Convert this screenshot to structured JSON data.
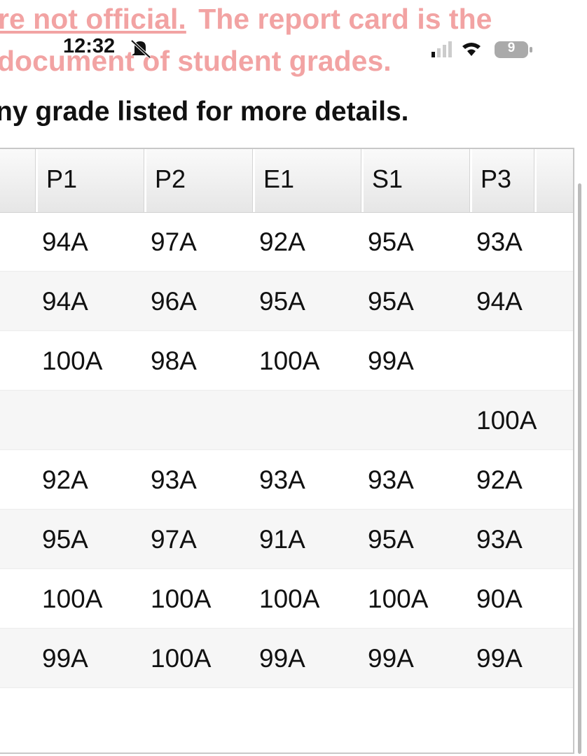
{
  "banner": {
    "link": "re not official.",
    "rest": "The report card is the",
    "line2": "document of student grades."
  },
  "status_bar": {
    "time": "12:32",
    "battery": "9"
  },
  "instruction": "ny grade listed for more details.",
  "table": {
    "columns": [
      "P1",
      "P2",
      "E1",
      "S1",
      "P3"
    ],
    "rows": [
      [
        "94A",
        "97A",
        "92A",
        "95A",
        "93A"
      ],
      [
        "94A",
        "96A",
        "95A",
        "95A",
        "94A"
      ],
      [
        "100A",
        "98A",
        "100A",
        "99A",
        null
      ],
      [
        null,
        null,
        null,
        null,
        "100A"
      ],
      [
        "92A",
        "93A",
        "93A",
        "93A",
        "92A"
      ],
      [
        "95A",
        "97A",
        "91A",
        "95A",
        "93A"
      ],
      [
        "100A",
        "100A",
        "100A",
        "100A",
        "90A"
      ],
      [
        "99A",
        "100A",
        "99A",
        "99A",
        "99A"
      ]
    ]
  }
}
